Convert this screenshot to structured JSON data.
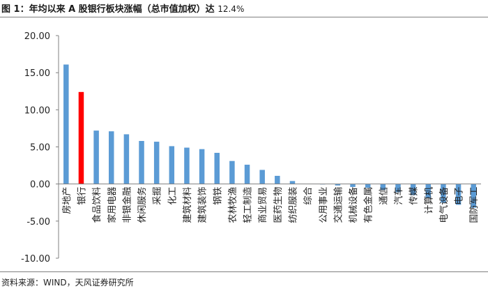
{
  "header": {
    "title": "图 1：年均以来 A 股银行板块涨幅（总市值加权）达",
    "title_highlight": "12.4%"
  },
  "footer": {
    "source": "资料来源：WIND，天风证券研究所"
  },
  "colors": {
    "bar": "#5b9bd5",
    "highlight": "#ff0000",
    "axis": "#808080",
    "tick_text": "#222222"
  },
  "chart_data": {
    "type": "bar",
    "title": "",
    "xlabel": "",
    "ylabel": "",
    "ylim": [
      -10,
      20
    ],
    "yticks": [
      "20.00",
      "15.00",
      "10.00",
      "5.00",
      "0.00",
      "-5.00",
      "-10.00"
    ],
    "ytick_values": [
      20,
      15,
      10,
      5,
      0,
      -5,
      -10
    ],
    "grid": false,
    "highlight_index": 1,
    "categories": [
      "房地产",
      "银行",
      "食品饮料",
      "家用电器",
      "非银金融",
      "休闲服务",
      "采掘",
      "化工",
      "建筑材料",
      "建筑装饰",
      "钢铁",
      "农林牧渔",
      "轻工制造",
      "商业贸易",
      "医药生物",
      "纺织服装",
      "综合",
      "公用事业",
      "交通运输",
      "机械设备",
      "有色金属",
      "通信",
      "汽车",
      "传媒",
      "计算机",
      "电气设备",
      "电子",
      "国防军工"
    ],
    "values": [
      16.1,
      12.4,
      7.2,
      7.1,
      6.7,
      5.8,
      5.7,
      5.1,
      4.9,
      4.7,
      4.2,
      3.1,
      2.6,
      1.9,
      1.1,
      0.4,
      0.0,
      -0.05,
      -0.2,
      -0.4,
      -0.5,
      -0.8,
      -1.1,
      -1.5,
      -1.9,
      -2.5,
      -2.8,
      -3.2
    ]
  }
}
